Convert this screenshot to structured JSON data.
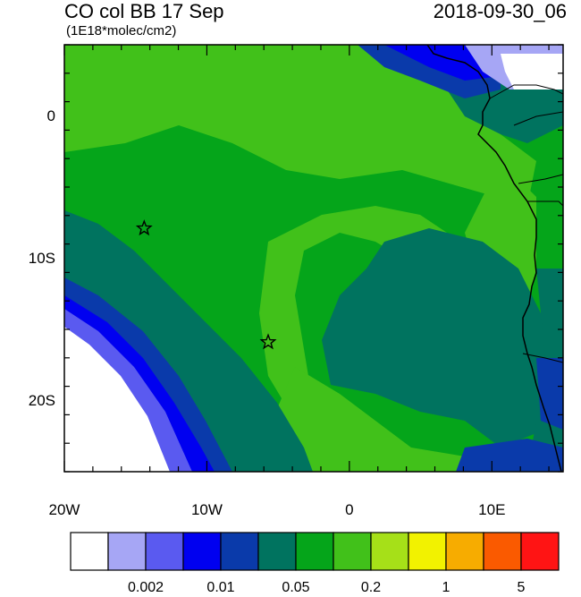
{
  "header": {
    "title": "CO col BB 17 Sep",
    "units": "(1E18*molec/cm2)",
    "timestamp": "2018-09-30_06"
  },
  "map": {
    "lon_range": [
      -20,
      15
    ],
    "lat_range": [
      -25,
      5
    ],
    "y_ticks": [
      {
        "lat": 0,
        "label": "0"
      },
      {
        "lat": -10,
        "label": "10S"
      },
      {
        "lat": -20,
        "label": "20S"
      }
    ],
    "x_ticks": [
      {
        "lon": -20,
        "label": "20W"
      },
      {
        "lon": -10,
        "label": "10W"
      },
      {
        "lon": 0,
        "label": "0"
      },
      {
        "lon": 10,
        "label": "10E"
      }
    ],
    "stations": [
      {
        "name": "station-ascension",
        "lon": -14.4,
        "lat": -7.9
      },
      {
        "name": "station-st-helena",
        "lon": -5.7,
        "lat": -15.9
      }
    ]
  },
  "colorbar": {
    "colors": [
      "#ffffff",
      "#a6a6f5",
      "#5a5af0",
      "#0000f0",
      "#0a3aaa",
      "#00735f",
      "#05a51a",
      "#41c11a",
      "#a6e018",
      "#f2f200",
      "#f7ac00",
      "#fa5a00",
      "#ff1414"
    ],
    "labels": [
      {
        "index": 2,
        "text": "0.002"
      },
      {
        "index": 4,
        "text": "0.01"
      },
      {
        "index": 6,
        "text": "0.05"
      },
      {
        "index": 8,
        "text": "0.2"
      },
      {
        "index": 10,
        "text": "1"
      },
      {
        "index": 12,
        "text": "5"
      }
    ]
  }
}
